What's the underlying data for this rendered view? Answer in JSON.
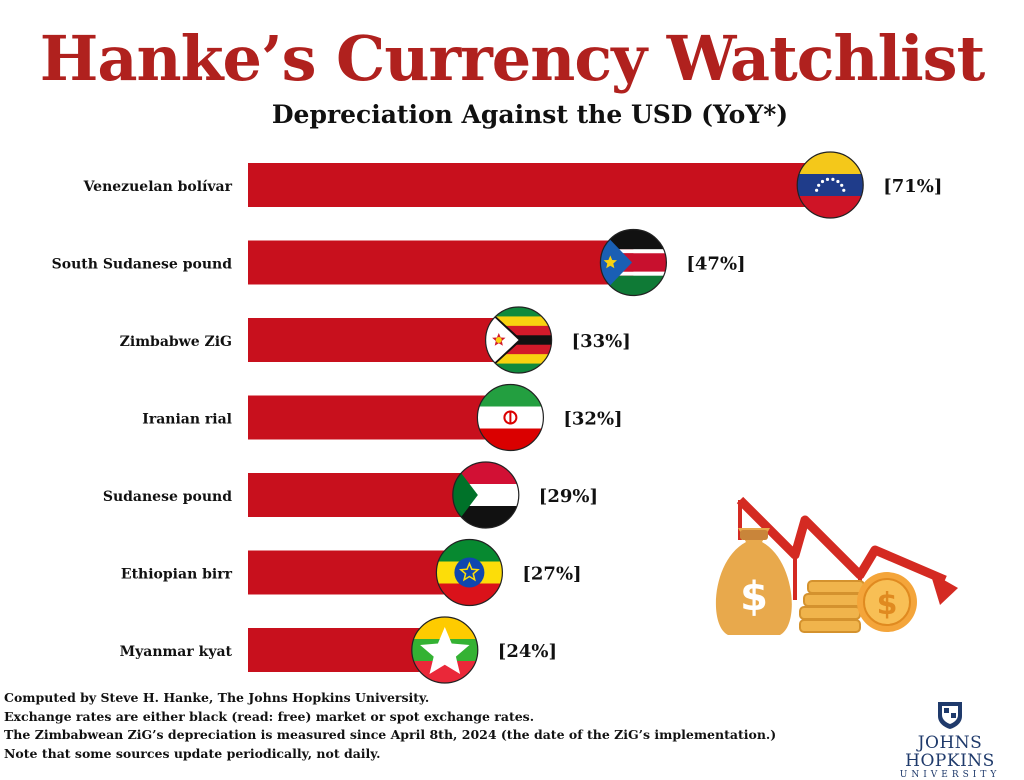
{
  "title": "Hanke’s Currency Watchlist",
  "subtitle": "Depreciation Against the USD (YoY*)",
  "chart_data": {
    "type": "bar",
    "orientation": "horizontal",
    "title": "Hanke’s Currency Watchlist",
    "subtitle": "Depreciation Against the USD (YoY*)",
    "categories": [
      "Venezuelan bolívar",
      "South Sudanese pound",
      "Zimbabwe ZiG",
      "Iranian rial",
      "Sudanese pound",
      "Ethiopian birr",
      "Myanmar  kyat"
    ],
    "values": [
      71,
      47,
      33,
      32,
      29,
      27,
      24
    ],
    "value_labels": [
      "[71%]",
      "[47%]",
      "[33%]",
      "[32%]",
      "[29%]",
      "[27%]",
      "[24%]"
    ],
    "flags": [
      "venezuela-flag",
      "south-sudan-flag",
      "zimbabwe-flag",
      "iran-flag",
      "sudan-flag",
      "ethiopia-flag",
      "myanmar-flag"
    ],
    "bar_color": "#c8101d",
    "xlim": [
      0,
      80
    ],
    "grid": false
  },
  "notes": [
    "Computed by Steve H. Hanke, The Johns Hopkins University.",
    "Exchange rates are either black (read: free) market or spot exchange rates.",
    "The Zimbabwean ZiG’s depreciation is measured since April 8th, 2024 (the date of the ZiG’s implementation.)",
    "Note that some sources update periodically, not daily."
  ],
  "logo": {
    "name": "JOHNS HOPKINS",
    "sub": "UNIVERSITY"
  },
  "colors": {
    "title": "#b0211e",
    "bar": "#c8101d",
    "logo": "#1f3a6b"
  },
  "illustration": {
    "icons": [
      "money-bag-icon",
      "coin-stack-icon",
      "coin-icon",
      "down-trend-arrow-icon"
    ]
  }
}
